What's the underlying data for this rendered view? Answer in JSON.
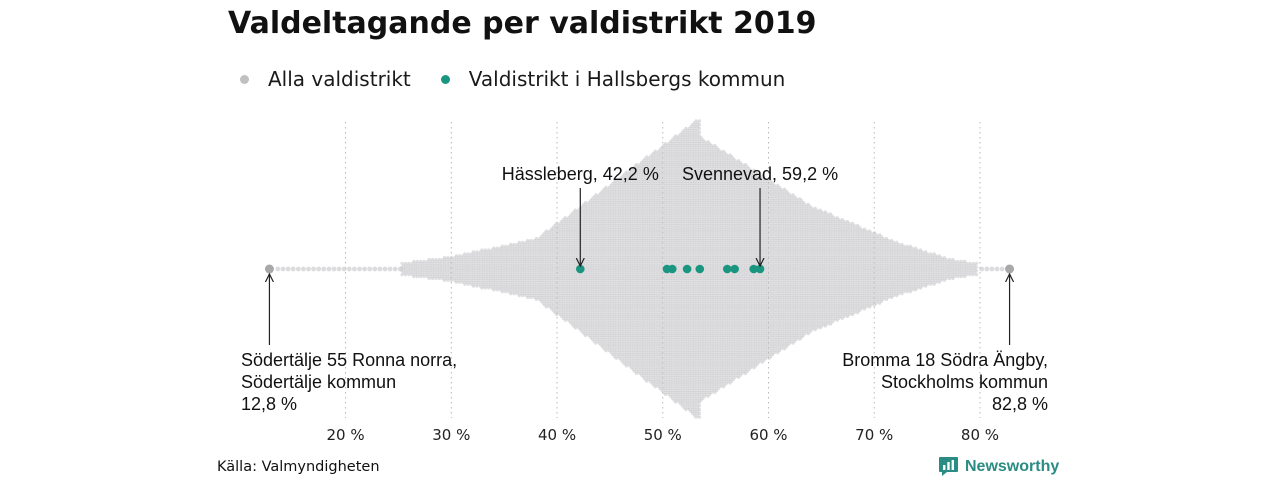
{
  "title": "Valdeltagande per valdistrikt 2019",
  "legend": {
    "items": [
      {
        "label": "Alla valdistrikt",
        "color": "#c0c0c3"
      },
      {
        "label": "Valdistrikt i Hallsbergs kommun",
        "color": "#1a9580"
      }
    ]
  },
  "chart_data": {
    "type": "scatter",
    "title": "Valdeltagande per valdistrikt 2019",
    "xlabel": "",
    "ylabel": "",
    "xlim": [
      10.3,
      85.3
    ],
    "x_ticks": [
      20,
      30,
      40,
      50,
      60,
      70,
      80
    ],
    "x_tick_labels": [
      "20 %",
      "30 %",
      "40 %",
      "50 %",
      "60 %",
      "70 %",
      "80 %"
    ],
    "grid": "vertical dotted",
    "legend_position": "top-left",
    "series": [
      {
        "name": "Alla valdistrikt",
        "color": "#c0c0c3",
        "distribution": "beeswarm of all electoral districts, densest around 53 %",
        "min": 12.8,
        "max": 82.8
      },
      {
        "name": "Valdistrikt i Hallsbergs kommun",
        "color": "#1a9580",
        "values": [
          42.2,
          50.4,
          50.9,
          52.3,
          53.5,
          56.1,
          56.8,
          58.6,
          59.2
        ]
      }
    ],
    "annotations": [
      {
        "text": "Hässleberg, 42,2 %",
        "x": 42.2
      },
      {
        "text": "Svennevad, 59,2 %",
        "x": 59.2
      },
      {
        "lines": [
          "Södertälje 55 Ronna norra,",
          "Södertälje kommun",
          "12,8 %"
        ],
        "x": 12.8
      },
      {
        "lines": [
          "Bromma 18 Södra Ängby,",
          "Stockholms kommun",
          "82,8 %"
        ],
        "x": 82.8
      }
    ]
  },
  "footer": {
    "source": "Källa: Valmyndigheten",
    "brand": "Newsworthy",
    "brand_color": "#2a8c83"
  }
}
